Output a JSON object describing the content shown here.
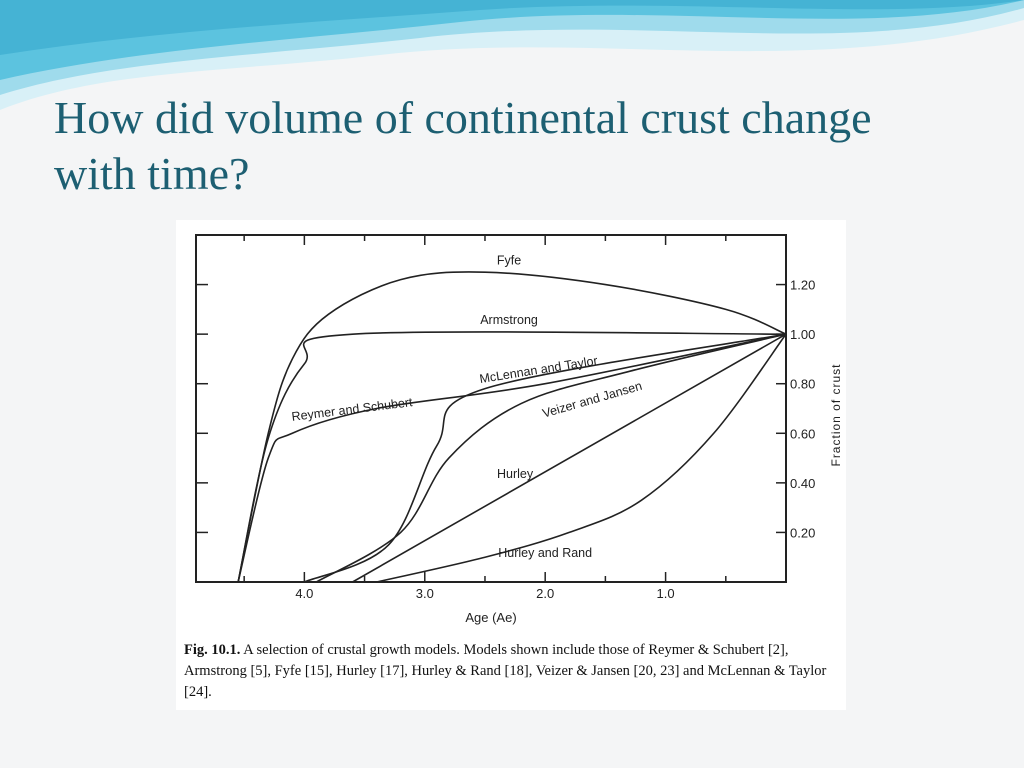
{
  "slide": {
    "title_line1": "How did volume of continental crust change",
    "title_line2": "with time?"
  },
  "colors": {
    "title": "#1d5f72",
    "wave_light": "#bfe6f1",
    "wave_mid": "#7ccde3",
    "wave_dark": "#3fb5d6",
    "ink": "#222222"
  },
  "caption": {
    "label": "Fig. 10.1.",
    "text": " A selection of crustal growth models. Models shown include those of Reymer & Schubert [2], Armstrong [5], Fyfe [15], Hurley [17], Hurley & Rand [18], Veizer & Jansen [20, 23] and McLennan & Taylor [24]."
  },
  "chart_data": {
    "type": "line",
    "xlabel": "Age (Ae)",
    "ylabel": "Fraction of crust",
    "x_reversed": true,
    "xlim": [
      4.9,
      0
    ],
    "ylim": [
      0,
      1.4
    ],
    "x_ticks": [
      4.0,
      3.0,
      2.0,
      1.0
    ],
    "x_tick_labels": [
      "4.0",
      "3.0",
      "2.0",
      "1.0"
    ],
    "y_ticks": [
      0.2,
      0.4,
      0.6,
      0.8,
      1.0,
      1.2
    ],
    "y_tick_labels": [
      "0.20",
      "0.40",
      "0.60",
      "0.80",
      "1.00",
      "1.20"
    ],
    "grid": false,
    "series": [
      {
        "name": "Fyfe",
        "points": [
          [
            4.55,
            0
          ],
          [
            4.3,
            0.6
          ],
          [
            4.1,
            0.9
          ],
          [
            3.8,
            1.08
          ],
          [
            3.2,
            1.22
          ],
          [
            2.5,
            1.25
          ],
          [
            1.5,
            1.2
          ],
          [
            0.5,
            1.1
          ],
          [
            0,
            1.0
          ]
        ]
      },
      {
        "name": "Armstrong",
        "points": [
          [
            4.55,
            0
          ],
          [
            4.3,
            0.58
          ],
          [
            4.0,
            0.88
          ],
          [
            3.6,
            1.0
          ],
          [
            0,
            1.0
          ]
        ]
      },
      {
        "name": "McLennan and Taylor",
        "points": [
          [
            4.0,
            0
          ],
          [
            3.3,
            0.15
          ],
          [
            2.9,
            0.55
          ],
          [
            2.5,
            0.78
          ],
          [
            0,
            1.0
          ]
        ]
      },
      {
        "name": "Reymer and Schubert",
        "points": [
          [
            4.55,
            0
          ],
          [
            4.3,
            0.5
          ],
          [
            4.1,
            0.6
          ],
          [
            3.4,
            0.7
          ],
          [
            2.0,
            0.8
          ],
          [
            0,
            1.0
          ]
        ]
      },
      {
        "name": "Veizer and Jansen",
        "points": [
          [
            3.9,
            0
          ],
          [
            3.2,
            0.2
          ],
          [
            2.8,
            0.5
          ],
          [
            2.2,
            0.72
          ],
          [
            1.3,
            0.85
          ],
          [
            0,
            1.0
          ]
        ]
      },
      {
        "name": "Hurley",
        "points": [
          [
            3.6,
            0
          ],
          [
            0,
            1.0
          ]
        ]
      },
      {
        "name": "Hurley and Rand",
        "points": [
          [
            3.4,
            0
          ],
          [
            2.5,
            0.1
          ],
          [
            1.8,
            0.2
          ],
          [
            1.2,
            0.33
          ],
          [
            0.6,
            0.6
          ],
          [
            0,
            1.0
          ]
        ]
      }
    ],
    "labels": [
      {
        "text": "Fyfe",
        "x": 2.3,
        "y": 1.28,
        "rotate": 0
      },
      {
        "text": "Armstrong",
        "x": 2.3,
        "y": 1.04,
        "rotate": 0
      },
      {
        "text": "McLennan and Taylor",
        "x": 2.05,
        "y": 0.84,
        "rotate": -9
      },
      {
        "text": "Reymer and Schubert",
        "x": 3.6,
        "y": 0.68,
        "rotate": -7
      },
      {
        "text": "Veizer and Jansen",
        "x": 1.6,
        "y": 0.72,
        "rotate": -16
      },
      {
        "text": "Hurley",
        "x": 2.25,
        "y": 0.42,
        "rotate": 0
      },
      {
        "text": "Hurley and Rand",
        "x": 2.0,
        "y": 0.1,
        "rotate": 0
      }
    ]
  }
}
